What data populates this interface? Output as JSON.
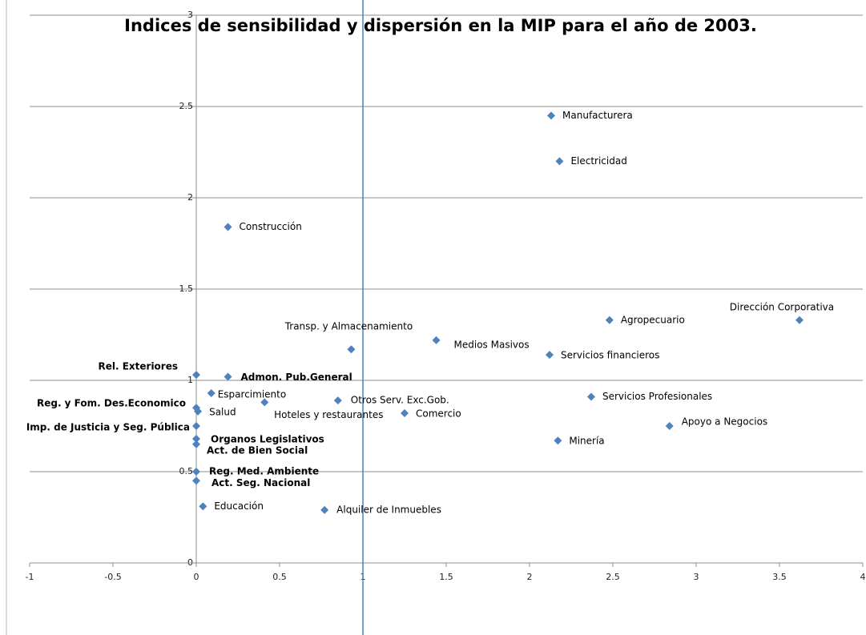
{
  "chart_data": {
    "type": "scatter",
    "title": "Indices de sensibilidad y dispersión en la MIP para el año de 2003.",
    "point_labels": [
      "Manufacturera",
      "Electricidad",
      "Construcción",
      "Dirección  Corporativa",
      "Agropecuario",
      "Transp. y Almacenamiento",
      "Medios Masivos",
      "Servicios financieros",
      "Rel. Exteriores",
      "Admon. Pub.General",
      "Esparcimiento",
      "Reg. y Fom. Des.Economico",
      "Salud",
      "Otros Serv. Exc.Gob.",
      "Hoteles y restaurantes",
      "Comercio",
      "Servicios Profesionales",
      "Apoyo a Negocios",
      "Imp. de Justicia  y Seg. Pública",
      "Organos Legislativos",
      "Act. de Bien Social",
      "Minería",
      "Reg. Med. Ambiente",
      "Act. Seg. Nacional",
      "Educación",
      "Alquiler de Inmuebles"
    ],
    "bold_labels": [
      false,
      false,
      false,
      false,
      false,
      false,
      false,
      false,
      true,
      true,
      false,
      true,
      false,
      false,
      false,
      false,
      false,
      false,
      true,
      true,
      true,
      false,
      true,
      true,
      false,
      false
    ],
    "x": [
      2.13,
      2.18,
      0.19,
      3.62,
      2.48,
      0.93,
      1.44,
      2.12,
      0,
      0.19,
      0.09,
      0,
      0.01,
      0.85,
      0.41,
      1.25,
      2.37,
      2.84,
      0,
      0,
      0,
      2.17,
      0,
      0,
      0.04,
      0.77
    ],
    "values": [
      2.45,
      2.2,
      1.84,
      1.33,
      1.33,
      1.17,
      1.22,
      1.14,
      1.03,
      1.02,
      0.93,
      0.85,
      0.83,
      0.89,
      0.88,
      0.82,
      0.91,
      0.75,
      0.75,
      0.68,
      0.65,
      0.67,
      0.5,
      0.45,
      0.31,
      0.29
    ],
    "color": "#4f81bd",
    "xlim": [
      -1,
      4
    ],
    "ylim": [
      0,
      3
    ],
    "xticks": [
      -1,
      -0.5,
      0,
      0.5,
      1,
      1.5,
      2,
      2.5,
      3,
      3.5,
      4
    ],
    "yticks": [
      0,
      0.5,
      1,
      1.5,
      2,
      2.5,
      3
    ],
    "reference_line_x": 1,
    "reference_line_color": "#4f81bd",
    "grid": true
  }
}
